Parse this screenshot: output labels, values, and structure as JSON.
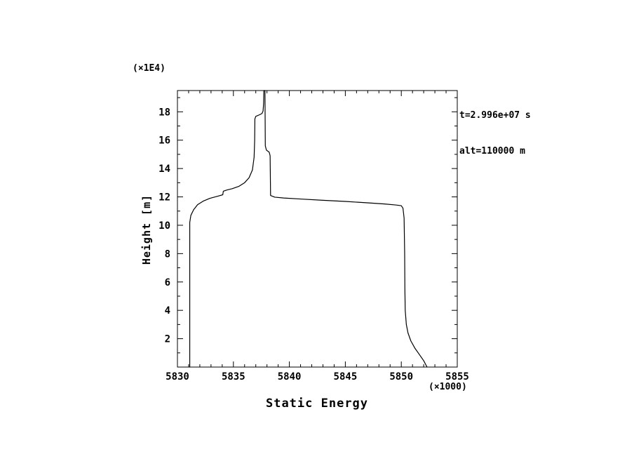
{
  "chart_data": {
    "type": "line",
    "title": "",
    "xlabel": "Static Energy",
    "ylabel": "Height [m]",
    "x_scale_label": "(×1000)",
    "y_scale_label": "(×1E4)",
    "annotations": [
      "t=2.996e+07 s",
      "alt=110000 m"
    ],
    "xlim": [
      5830,
      5855
    ],
    "ylim": [
      0,
      19.5
    ],
    "xticks": [
      5830,
      5835,
      5840,
      5845,
      5850,
      5855
    ],
    "yticks": [
      2,
      4,
      6,
      8,
      10,
      12,
      14,
      16,
      18
    ],
    "x_minor_step": 1,
    "y_minor_step": 1,
    "grid": false,
    "legend": "none",
    "line_color": "#000000",
    "background_color": "#ffffff",
    "series": [
      {
        "name": "static-energy-profile",
        "points": [
          [
            5831.1,
            0.0
          ],
          [
            5831.1,
            10.2
          ],
          [
            5831.2,
            10.7
          ],
          [
            5831.45,
            11.1
          ],
          [
            5831.8,
            11.45
          ],
          [
            5832.3,
            11.7
          ],
          [
            5832.9,
            11.9
          ],
          [
            5833.6,
            12.05
          ],
          [
            5834.05,
            12.15
          ],
          [
            5834.1,
            12.4
          ],
          [
            5834.4,
            12.48
          ],
          [
            5834.9,
            12.58
          ],
          [
            5835.5,
            12.75
          ],
          [
            5836.0,
            13.0
          ],
          [
            5836.4,
            13.35
          ],
          [
            5836.7,
            13.9
          ],
          [
            5836.85,
            14.8
          ],
          [
            5836.9,
            16.0
          ],
          [
            5836.92,
            17.5
          ],
          [
            5837.0,
            17.68
          ],
          [
            5837.3,
            17.78
          ],
          [
            5837.55,
            17.88
          ],
          [
            5837.65,
            18.05
          ],
          [
            5837.7,
            18.6
          ],
          [
            5837.72,
            19.5
          ],
          [
            5837.82,
            19.5
          ],
          [
            5837.85,
            15.6
          ],
          [
            5837.95,
            15.3
          ],
          [
            5838.2,
            15.15
          ],
          [
            5838.28,
            14.9
          ],
          [
            5838.3,
            13.5
          ],
          [
            5838.32,
            12.1
          ],
          [
            5838.7,
            11.98
          ],
          [
            5839.5,
            11.92
          ],
          [
            5841.0,
            11.85
          ],
          [
            5843.0,
            11.76
          ],
          [
            5845.0,
            11.68
          ],
          [
            5847.0,
            11.58
          ],
          [
            5848.5,
            11.5
          ],
          [
            5849.5,
            11.43
          ],
          [
            5850.0,
            11.38
          ],
          [
            5850.15,
            11.2
          ],
          [
            5850.25,
            10.5
          ],
          [
            5850.3,
            8.0
          ],
          [
            5850.32,
            5.5
          ],
          [
            5850.35,
            4.0
          ],
          [
            5850.45,
            3.0
          ],
          [
            5850.6,
            2.4
          ],
          [
            5850.85,
            1.85
          ],
          [
            5851.2,
            1.35
          ],
          [
            5851.6,
            0.9
          ],
          [
            5852.0,
            0.45
          ],
          [
            5852.3,
            0.0
          ]
        ]
      }
    ]
  }
}
